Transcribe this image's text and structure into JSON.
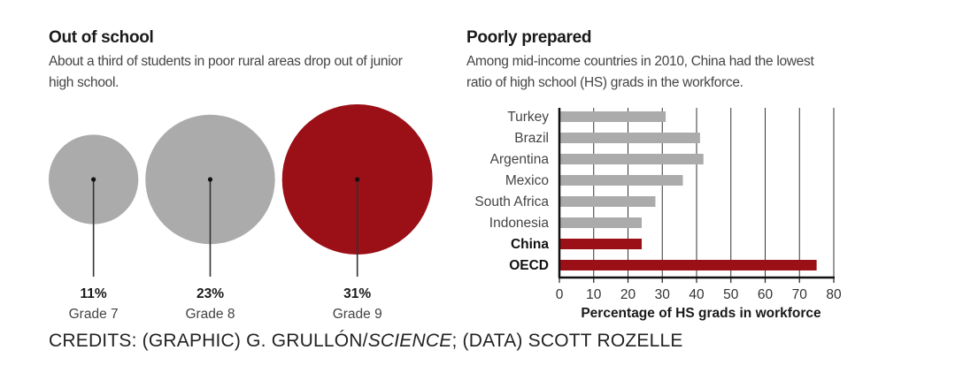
{
  "left_panel": {
    "title": "Out of school",
    "subtitle": "About a third of students in poor rural areas drop out of junior high school."
  },
  "right_panel": {
    "title": "Poorly prepared",
    "subtitle": "Among mid-income countries in 2010, China had the lowest ratio of high school (HS) grads in the workforce."
  },
  "credits": {
    "part1": "CREDITS: (GRAPHIC) G. GRULLÓN/",
    "part2": "SCIENCE",
    "part3": "; (DATA) SCOTT ROZELLE"
  },
  "colors": {
    "gray": "#ababab",
    "red": "#9b0f17",
    "grid": "#333333"
  },
  "chart_data": [
    {
      "type": "bubble",
      "title": "Out of school",
      "items": [
        {
          "label": "Grade 7",
          "value": 11,
          "value_label": "11%",
          "color": "#ababab"
        },
        {
          "label": "Grade 8",
          "value": 23,
          "value_label": "23%",
          "color": "#ababab"
        },
        {
          "label": "Grade 9",
          "value": 31,
          "value_label": "31%",
          "color": "#9b0f17"
        }
      ]
    },
    {
      "type": "bar",
      "orientation": "horizontal",
      "title": "Poorly prepared",
      "xlabel": "Percentage of HS grads in workforce",
      "xlim": [
        0,
        80
      ],
      "xticks": [
        "0",
        "10",
        "20",
        "30",
        "40",
        "50",
        "60",
        "70",
        "80"
      ],
      "grid": true,
      "categories": [
        "Turkey",
        "Brazil",
        "Argentina",
        "Mexico",
        "South Africa",
        "Indonesia",
        "China",
        "OECD"
      ],
      "values": [
        31,
        41,
        42,
        36,
        28,
        24,
        24,
        75
      ],
      "highlight": [
        "China",
        "OECD"
      ]
    }
  ]
}
